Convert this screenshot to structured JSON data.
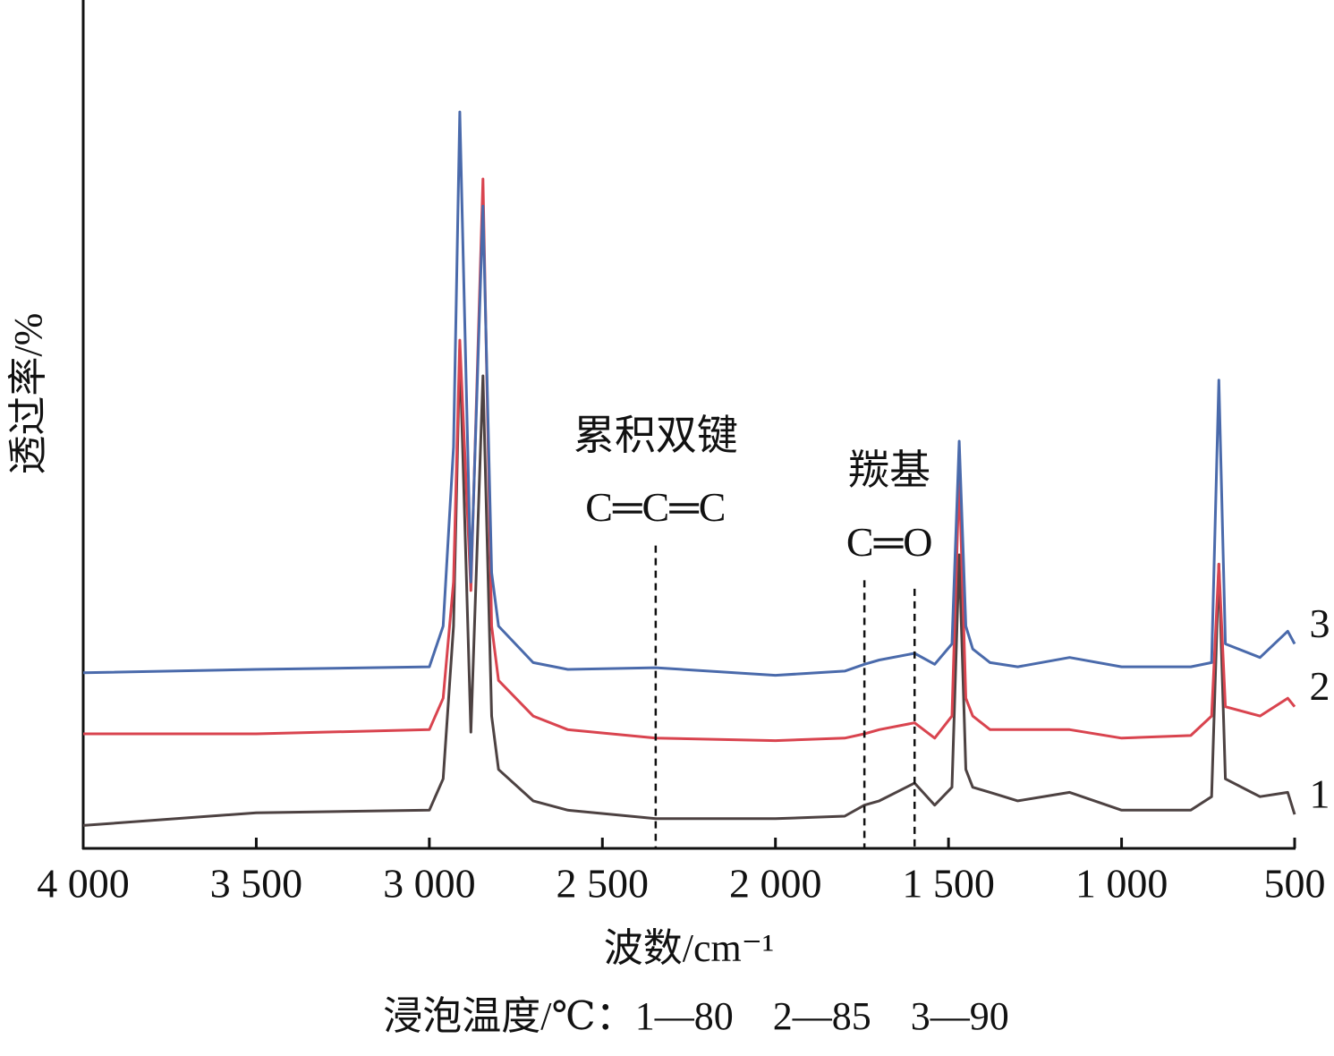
{
  "chart_data": {
    "type": "line",
    "xlabel": "波数/cm⁻¹",
    "ylabel": "透过率/%",
    "caption": "浸泡温度/℃：1—80　2—85　3—90",
    "xlim": [
      4000,
      500
    ],
    "ylim": [
      0,
      100
    ],
    "xticks": [
      {
        "value": 4000,
        "label": "4 000"
      },
      {
        "value": 3500,
        "label": "3 500"
      },
      {
        "value": 3000,
        "label": "3 000"
      },
      {
        "value": 2500,
        "label": "2 500"
      },
      {
        "value": 2000,
        "label": "2 000"
      },
      {
        "value": 1500,
        "label": "1 500"
      },
      {
        "value": 1000,
        "label": "1 000"
      },
      500
    ],
    "x": [
      4000,
      3500,
      3000,
      2960,
      2930,
      2912,
      2880,
      2845,
      2820,
      2800,
      2700,
      2600,
      2346,
      2000,
      1800,
      1743,
      1700,
      1598,
      1540,
      1490,
      1469,
      1450,
      1430,
      1380,
      1300,
      1150,
      1000,
      800,
      740,
      719,
      700,
      600,
      520,
      500
    ],
    "series": [
      {
        "name": "1",
        "color": "#4d4242",
        "values": [
          2.7,
          4.2,
          4.5,
          8.2,
          26.2,
          58.9,
          13.7,
          55.7,
          15.6,
          9.3,
          5.6,
          4.5,
          3.5,
          3.5,
          3.8,
          5.1,
          5.6,
          7.7,
          5.1,
          7.2,
          34.6,
          9.3,
          7.2,
          6.6,
          5.6,
          6.6,
          4.5,
          4.5,
          6.1,
          33.5,
          8.2,
          6.1,
          6.6,
          4.0
        ]
      },
      {
        "name": "2",
        "color": "#d9444f",
        "values": [
          13.5,
          13.5,
          14.0,
          17.7,
          31.4,
          59.9,
          30.4,
          78.9,
          26.2,
          19.8,
          15.6,
          14.0,
          13.0,
          12.7,
          13.0,
          13.5,
          14.0,
          14.8,
          13.0,
          15.6,
          44.1,
          17.7,
          15.6,
          14.0,
          14.0,
          14.0,
          13.0,
          13.3,
          15.6,
          33.5,
          16.7,
          15.6,
          17.7,
          16.7
        ]
      },
      {
        "name": "3",
        "color": "#4a6aab",
        "values": [
          20.7,
          21.1,
          21.4,
          26.2,
          47.3,
          86.8,
          31.4,
          75.7,
          32.5,
          26.2,
          21.9,
          21.1,
          21.3,
          20.4,
          20.9,
          21.7,
          22.2,
          23.0,
          21.7,
          24.1,
          48.0,
          26.2,
          23.5,
          21.9,
          21.4,
          22.5,
          21.4,
          21.4,
          21.9,
          55.2,
          24.1,
          22.5,
          25.6,
          24.1
        ]
      }
    ],
    "annotations": [
      {
        "text": "累积双键",
        "formula": "C═C═C",
        "lines": [
          {
            "x": 2346,
            "y": 35.7
          }
        ]
      },
      {
        "text": "羰基",
        "formula": "C═O",
        "lines": [
          {
            "x": 1743,
            "y": 31.6
          },
          {
            "x": 1598,
            "y": 30.6
          }
        ]
      }
    ]
  }
}
